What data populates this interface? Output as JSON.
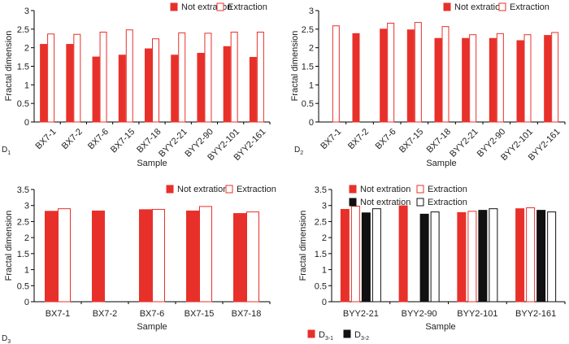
{
  "colors": {
    "not_extraction": "#e8302a",
    "extraction_stroke": "#e8302a",
    "extraction_fill": "#ffffff",
    "d32_filled": "#111111",
    "d32_outline": "#111111"
  },
  "chart_data": [
    {
      "type": "bar",
      "panel_label": "D",
      "panel_label_sub": "1",
      "xlabel": "Sample",
      "ylabel": "Fractal dimension",
      "ylim": [
        0,
        3
      ],
      "yticks": [
        "0",
        "0.5",
        "1",
        "1.5",
        "2",
        "2.5",
        "3"
      ],
      "categories": [
        "BX7-1",
        "BX7-2",
        "BX7-6",
        "BX7-15",
        "BX7-18",
        "BYY2-21",
        "BYY2-90",
        "BYY2-101",
        "BYY2-161"
      ],
      "legend_position": "top-right",
      "series": [
        {
          "name": "Not extration",
          "style": "filled-red",
          "values": [
            2.09,
            2.09,
            1.75,
            1.8,
            1.97,
            1.8,
            1.85,
            2.03,
            1.74
          ]
        },
        {
          "name": "Extraction",
          "style": "outline-red",
          "values": [
            2.37,
            2.36,
            2.42,
            2.48,
            2.24,
            2.4,
            2.39,
            2.42,
            2.42
          ]
        }
      ]
    },
    {
      "type": "bar",
      "panel_label": "D",
      "panel_label_sub": "2",
      "xlabel": "Sample",
      "ylabel": "Fractal dimension",
      "ylim": [
        0,
        3
      ],
      "yticks": [
        "0",
        "0.5",
        "1",
        "1.5",
        "2",
        "2.5",
        "3"
      ],
      "categories": [
        "BX7-1",
        "BX7-2",
        "BX7-6",
        "BX7-15",
        "BX7-18",
        "BYY2-21",
        "BYY2-90",
        "BYY2-101",
        "BYY2-161"
      ],
      "legend_position": "top-right",
      "series": [
        {
          "name": "Not extration",
          "style": "filled-red",
          "values": [
            null,
            2.38,
            2.5,
            2.48,
            2.25,
            2.25,
            2.25,
            2.19,
            2.33
          ]
        },
        {
          "name": "Extraction",
          "style": "outline-red",
          "values": [
            2.59,
            null,
            2.66,
            2.68,
            2.57,
            2.35,
            2.38,
            2.35,
            2.41
          ]
        }
      ]
    },
    {
      "type": "bar",
      "panel_label": "D",
      "panel_label_sub": "3",
      "xlabel": "Sample",
      "ylabel": "Fractal dimension",
      "ylim": [
        0,
        3.5
      ],
      "yticks": [
        "0",
        "0.5",
        "1",
        "1.5",
        "2",
        "2.5",
        "3",
        "3.5"
      ],
      "categories": [
        "BX7-1",
        "BX7-2",
        "BX7-6",
        "BX7-15",
        "BX7-18"
      ],
      "legend_position": "top-right",
      "series": [
        {
          "name": "Not extration",
          "style": "filled-red",
          "values": [
            2.82,
            2.83,
            2.87,
            2.83,
            2.75
          ]
        },
        {
          "name": "Extraction",
          "style": "outline-red",
          "values": [
            2.9,
            null,
            2.88,
            2.97,
            2.8
          ]
        }
      ]
    },
    {
      "type": "bar",
      "panel_label": "",
      "xlabel": "Sample",
      "ylabel": "Fractal dimension",
      "ylim": [
        0,
        3.5
      ],
      "yticks": [
        "0",
        "0.5",
        "1",
        "1.5",
        "2",
        "2.5",
        "3",
        "3.5"
      ],
      "categories": [
        "BYY2-21",
        "BYY2-90",
        "BYY2-101",
        "BYY2-161"
      ],
      "legend_position": "top",
      "series": [
        {
          "name": "Not extration",
          "style": "filled-red",
          "values": [
            2.88,
            2.99,
            2.78,
            2.9
          ]
        },
        {
          "name": "Extraction",
          "style": "outline-red",
          "values": [
            2.98,
            null,
            2.82,
            2.93
          ]
        },
        {
          "name": "Not extration",
          "style": "filled-black",
          "values": [
            2.77,
            2.73,
            2.85,
            2.85
          ]
        },
        {
          "name": "Extraction",
          "style": "outline-black",
          "values": [
            2.9,
            2.8,
            2.9,
            2.8
          ]
        }
      ],
      "bottom_legend": [
        {
          "label": "D",
          "sub": "3-1",
          "style": "filled-red"
        },
        {
          "label": "D",
          "sub": "3-2",
          "style": "filled-black"
        }
      ]
    }
  ]
}
